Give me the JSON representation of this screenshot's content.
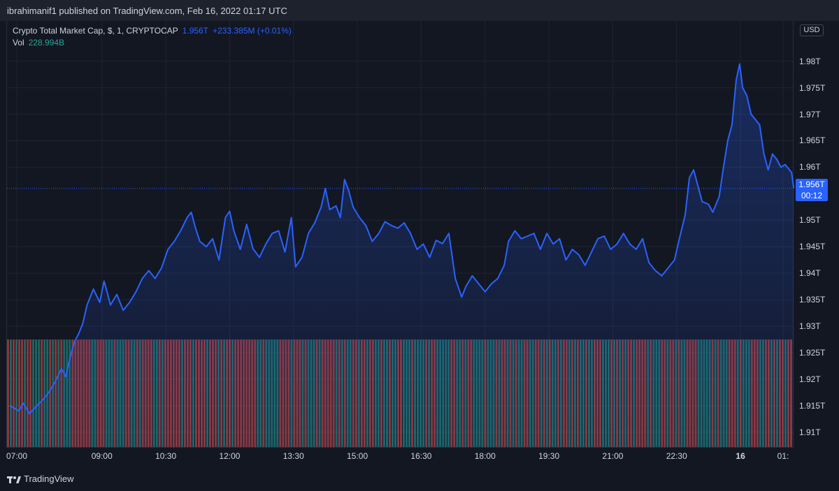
{
  "header": {
    "publish_text": "ibrahimanif1 published on TradingView.com, Feb 16, 2022 01:17 UTC"
  },
  "legend": {
    "symbol": "Crypto Total Market Cap, $, 1, CRYPTOCAP",
    "last": "1.956T",
    "change": "+233.385M (+0.01%)",
    "vol_label": "Vol",
    "vol_value": "228.994B"
  },
  "currency": "USD",
  "price_label": {
    "price": "1.956T",
    "countdown": "00:12"
  },
  "footer": {
    "brand": "TradingView"
  },
  "colors": {
    "line": "#2962ff",
    "up": "#26a69a",
    "down": "#ef5350",
    "background": "#131722"
  },
  "chart_data": {
    "type": "area",
    "series": [
      {
        "values": []
      }
    ],
    "x_tick_labels": [
      "07:00",
      "09:00",
      "10:30",
      "12:00",
      "13:30",
      "15:00",
      "16:30",
      "18:00",
      "19:30",
      "21:00",
      "22:30",
      "16",
      "01:"
    ],
    "x_tick_times": [
      7.0,
      9.0,
      10.5,
      12.0,
      13.5,
      15.0,
      16.5,
      18.0,
      19.5,
      21.0,
      22.5,
      24.0,
      25.0
    ],
    "y_tick_labels": [
      "1.98T",
      "1.975T",
      "1.97T",
      "1.965T",
      "1.96T",
      "1.95T",
      "1.945T",
      "1.94T",
      "1.935T",
      "1.93T",
      "1.925T",
      "1.92T",
      "1.915T",
      "1.91T"
    ],
    "y_tick_values": [
      1.98,
      1.975,
      1.97,
      1.965,
      1.96,
      1.95,
      1.945,
      1.94,
      1.935,
      1.93,
      1.925,
      1.92,
      1.915,
      1.91
    ],
    "ylim": [
      1.9072,
      1.9876
    ],
    "xlim": [
      6.77,
      25.23
    ],
    "price_points": [
      [
        6.83,
        1.915
      ],
      [
        6.95,
        1.9145
      ],
      [
        7.05,
        1.914
      ],
      [
        7.15,
        1.9155
      ],
      [
        7.3,
        1.9135
      ],
      [
        7.45,
        1.9148
      ],
      [
        7.6,
        1.916
      ],
      [
        7.75,
        1.9175
      ],
      [
        7.9,
        1.9195
      ],
      [
        8.05,
        1.922
      ],
      [
        8.15,
        1.9205
      ],
      [
        8.25,
        1.924
      ],
      [
        8.35,
        1.927
      ],
      [
        8.45,
        1.9285
      ],
      [
        8.55,
        1.9305
      ],
      [
        8.65,
        1.934
      ],
      [
        8.8,
        1.937
      ],
      [
        8.95,
        1.9345
      ],
      [
        9.05,
        1.9385
      ],
      [
        9.12,
        1.9365
      ],
      [
        9.2,
        1.934
      ],
      [
        9.35,
        1.936
      ],
      [
        9.5,
        1.933
      ],
      [
        9.65,
        1.9345
      ],
      [
        9.8,
        1.9365
      ],
      [
        9.95,
        1.939
      ],
      [
        10.1,
        1.9405
      ],
      [
        10.25,
        1.939
      ],
      [
        10.4,
        1.941
      ],
      [
        10.55,
        1.9445
      ],
      [
        10.7,
        1.946
      ],
      [
        10.85,
        1.948
      ],
      [
        11.0,
        1.9505
      ],
      [
        11.1,
        1.9515
      ],
      [
        11.2,
        1.9485
      ],
      [
        11.3,
        1.946
      ],
      [
        11.45,
        1.945
      ],
      [
        11.6,
        1.9465
      ],
      [
        11.75,
        1.9425
      ],
      [
        11.9,
        1.9505
      ],
      [
        12.0,
        1.9517
      ],
      [
        12.1,
        1.948
      ],
      [
        12.25,
        1.9445
      ],
      [
        12.4,
        1.9492
      ],
      [
        12.55,
        1.9446
      ],
      [
        12.7,
        1.943
      ],
      [
        12.85,
        1.9455
      ],
      [
        13.0,
        1.9475
      ],
      [
        13.15,
        1.948
      ],
      [
        13.3,
        1.944
      ],
      [
        13.45,
        1.9505
      ],
      [
        13.55,
        1.9412
      ],
      [
        13.7,
        1.943
      ],
      [
        13.85,
        1.9475
      ],
      [
        14.0,
        1.9495
      ],
      [
        14.15,
        1.9525
      ],
      [
        14.25,
        1.956
      ],
      [
        14.35,
        1.952
      ],
      [
        14.5,
        1.9527
      ],
      [
        14.6,
        1.9505
      ],
      [
        14.7,
        1.9577
      ],
      [
        14.8,
        1.9555
      ],
      [
        14.9,
        1.9525
      ],
      [
        15.05,
        1.9505
      ],
      [
        15.2,
        1.949
      ],
      [
        15.35,
        1.946
      ],
      [
        15.5,
        1.9475
      ],
      [
        15.65,
        1.9497
      ],
      [
        15.8,
        1.949
      ],
      [
        15.95,
        1.9485
      ],
      [
        16.1,
        1.9495
      ],
      [
        16.25,
        1.9475
      ],
      [
        16.4,
        1.9445
      ],
      [
        16.55,
        1.9455
      ],
      [
        16.7,
        1.943
      ],
      [
        16.85,
        1.9462
      ],
      [
        17.0,
        1.9456
      ],
      [
        17.15,
        1.9475
      ],
      [
        17.3,
        1.939
      ],
      [
        17.45,
        1.9355
      ],
      [
        17.55,
        1.9375
      ],
      [
        17.7,
        1.9395
      ],
      [
        17.85,
        1.938
      ],
      [
        18.0,
        1.9365
      ],
      [
        18.15,
        1.938
      ],
      [
        18.3,
        1.939
      ],
      [
        18.45,
        1.9415
      ],
      [
        18.55,
        1.946
      ],
      [
        18.7,
        1.948
      ],
      [
        18.85,
        1.9465
      ],
      [
        19.0,
        1.947
      ],
      [
        19.15,
        1.9475
      ],
      [
        19.3,
        1.9445
      ],
      [
        19.45,
        1.9475
      ],
      [
        19.6,
        1.9455
      ],
      [
        19.75,
        1.9465
      ],
      [
        19.9,
        1.9425
      ],
      [
        20.05,
        1.9445
      ],
      [
        20.2,
        1.9435
      ],
      [
        20.35,
        1.9415
      ],
      [
        20.5,
        1.944
      ],
      [
        20.65,
        1.9465
      ],
      [
        20.8,
        1.947
      ],
      [
        20.95,
        1.9445
      ],
      [
        21.1,
        1.9455
      ],
      [
        21.25,
        1.9475
      ],
      [
        21.4,
        1.9455
      ],
      [
        21.55,
        1.9445
      ],
      [
        21.7,
        1.9465
      ],
      [
        21.85,
        1.942
      ],
      [
        22.0,
        1.9405
      ],
      [
        22.15,
        1.9395
      ],
      [
        22.3,
        1.941
      ],
      [
        22.45,
        1.9425
      ],
      [
        22.55,
        1.946
      ],
      [
        22.7,
        1.951
      ],
      [
        22.8,
        1.958
      ],
      [
        22.9,
        1.9595
      ],
      [
        23.0,
        1.9565
      ],
      [
        23.1,
        1.9535
      ],
      [
        23.25,
        1.953
      ],
      [
        23.35,
        1.9515
      ],
      [
        23.5,
        1.9545
      ],
      [
        23.6,
        1.96
      ],
      [
        23.7,
        1.965
      ],
      [
        23.8,
        1.968
      ],
      [
        23.9,
        1.9765
      ],
      [
        23.98,
        1.9795
      ],
      [
        24.05,
        1.975
      ],
      [
        24.15,
        1.9735
      ],
      [
        24.25,
        1.97
      ],
      [
        24.35,
        1.969
      ],
      [
        24.45,
        1.968
      ],
      [
        24.55,
        1.9625
      ],
      [
        24.65,
        1.9595
      ],
      [
        24.75,
        1.9625
      ],
      [
        24.85,
        1.9615
      ],
      [
        24.95,
        1.96
      ],
      [
        25.05,
        1.9605
      ],
      [
        25.1,
        1.96
      ],
      [
        25.2,
        1.959
      ],
      [
        25.25,
        1.956
      ]
    ]
  }
}
